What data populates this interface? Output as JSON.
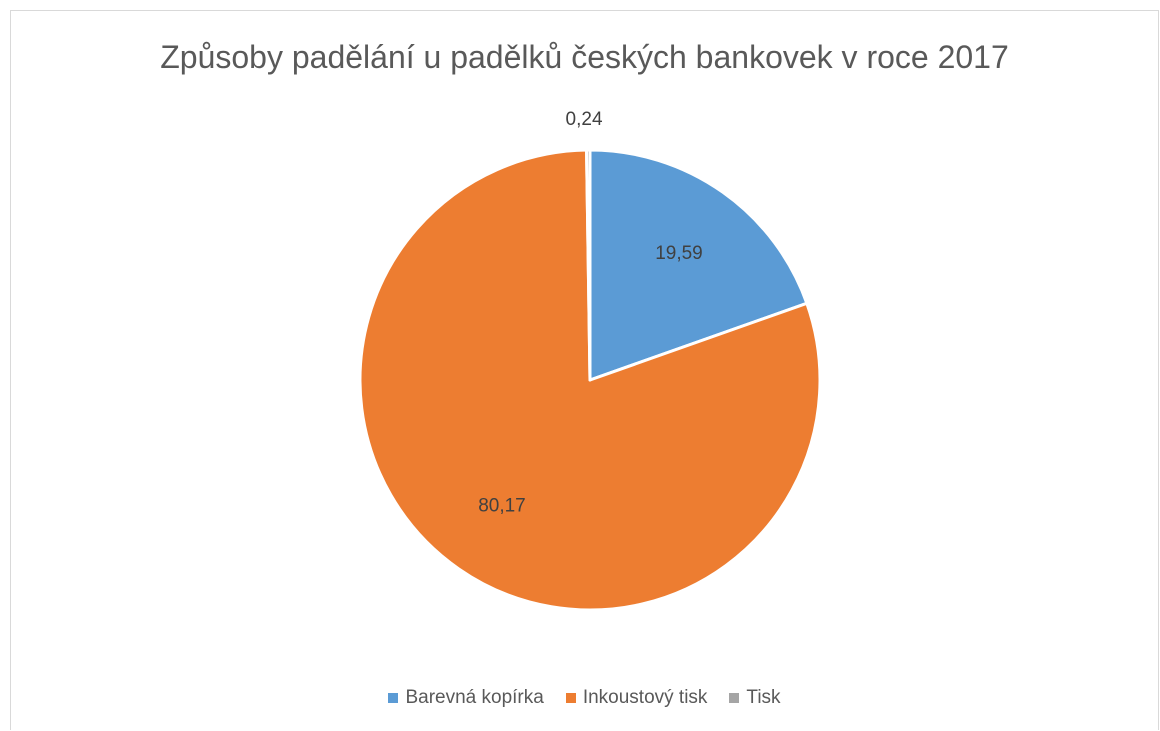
{
  "chart_data": {
    "type": "pie",
    "title": "Způsoby padělání u padělků českých bankovek v roce 2017",
    "categories": [
      "Barevná kopírka",
      "Inkoustový tisk",
      "Tisk"
    ],
    "values": [
      19.59,
      80.17,
      0.24
    ],
    "data_labels": [
      "19,59",
      "80,17",
      "0,24"
    ],
    "colors": [
      "#5b9bd5",
      "#ed7d31",
      "#a5a5a5"
    ],
    "legend_position": "bottom"
  }
}
